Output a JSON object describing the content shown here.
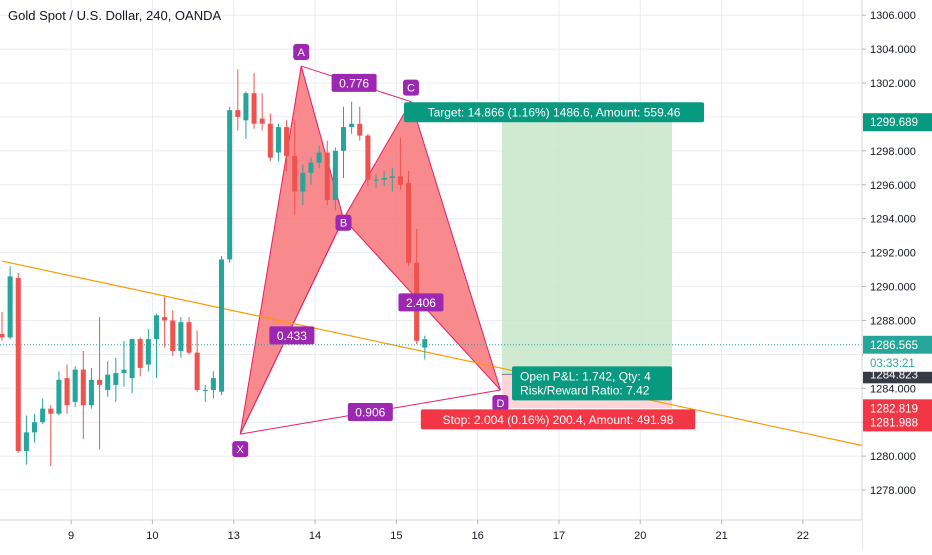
{
  "chart_data": {
    "type": "candlestick",
    "title": "Gold Spot / U.S. Dollar, 240, OANDA",
    "colors": {
      "up": "#26a69a",
      "down": "#ef5350",
      "pattern_fill": "#f77c80",
      "pattern_stroke": "#e91e63",
      "point_label": "#9c27b0",
      "trendline": "#ff9800",
      "target_zone": "#c8e6c9",
      "stop_zone": "#ffcdd2",
      "target_label": "#089981",
      "stop_label": "#f23645",
      "current_price_label": "#26a69a",
      "dark_label": "#363a45",
      "grid": "#e9ecf2"
    },
    "y_axis": {
      "min": 1277,
      "max": 1306.6,
      "ticks": [
        "1278.000",
        "1280.000",
        "1282.000",
        "1284.000",
        "1286.000",
        "1288.000",
        "1290.000",
        "1292.000",
        "1294.000",
        "1296.000",
        "1298.000",
        "1300.000",
        "1302.000",
        "1304.000",
        "1306.000"
      ]
    },
    "x_axis": {
      "min": 0,
      "max": 107,
      "ticks": [
        {
          "i": 8.5,
          "label": "9"
        },
        {
          "i": 18.5,
          "label": "10"
        },
        {
          "i": 28.5,
          "label": "13"
        },
        {
          "i": 38.5,
          "label": "14"
        },
        {
          "i": 48.5,
          "label": "15"
        },
        {
          "i": 58.5,
          "label": "16"
        },
        {
          "i": 68.5,
          "label": "17"
        },
        {
          "i": 78.5,
          "label": "20"
        },
        {
          "i": 88.5,
          "label": "21"
        },
        {
          "i": 98.5,
          "label": "22"
        }
      ]
    },
    "candles": [
      [
        1287.2,
        1288.5,
        1286.8,
        1287.0
      ],
      [
        1287.0,
        1291.2,
        1286.9,
        1290.6
      ],
      [
        1290.5,
        1290.8,
        1280.2,
        1280.3
      ],
      [
        1280.3,
        1282.4,
        1279.5,
        1281.4
      ],
      [
        1281.4,
        1282.5,
        1280.8,
        1282.0
      ],
      [
        1282.0,
        1283.4,
        1281.9,
        1282.8
      ],
      [
        1282.8,
        1283.0,
        1279.4,
        1282.5
      ],
      [
        1282.5,
        1285.0,
        1282.4,
        1284.5
      ],
      [
        1284.6,
        1285.4,
        1282.5,
        1283.0
      ],
      [
        1283.2,
        1285.3,
        1282.9,
        1285.1
      ],
      [
        1285.1,
        1286.2,
        1281.0,
        1283.0
      ],
      [
        1283.0,
        1285.2,
        1282.8,
        1284.5
      ],
      [
        1284.5,
        1288.2,
        1280.4,
        1284.2
      ],
      [
        1283.9,
        1285.6,
        1283.5,
        1284.8
      ],
      [
        1284.2,
        1285.8,
        1283.2,
        1284.9
      ],
      [
        1284.9,
        1286.8,
        1284.1,
        1285.1
      ],
      [
        1284.6,
        1286.9,
        1283.7,
        1286.9
      ],
      [
        1286.9,
        1287.0,
        1284.7,
        1285.2
      ],
      [
        1285.4,
        1287.5,
        1285.0,
        1286.9
      ],
      [
        1286.9,
        1288.4,
        1284.6,
        1288.3
      ],
      [
        1288.2,
        1289.4,
        1286.4,
        1288.0
      ],
      [
        1288.0,
        1288.6,
        1285.9,
        1286.2
      ],
      [
        1286.2,
        1288.2,
        1285.8,
        1287.9
      ],
      [
        1287.9,
        1288.2,
        1286.0,
        1286.1
      ],
      [
        1286.1,
        1287.4,
        1283.8,
        1283.9
      ],
      [
        1283.9,
        1284.2,
        1283.2,
        1283.9
      ],
      [
        1283.9,
        1285.0,
        1283.4,
        1284.6
      ],
      [
        1283.8,
        1291.8,
        1283.6,
        1291.6
      ],
      [
        1291.6,
        1300.6,
        1291.4,
        1300.4
      ],
      [
        1300.4,
        1302.8,
        1299.2,
        1300.0
      ],
      [
        1299.8,
        1301.5,
        1298.7,
        1301.4
      ],
      [
        1301.4,
        1302.6,
        1299.3,
        1299.6
      ],
      [
        1299.9,
        1301.4,
        1299.2,
        1299.6
      ],
      [
        1299.6,
        1300.2,
        1297.4,
        1297.6
      ],
      [
        1297.9,
        1299.6,
        1297.4,
        1299.4
      ],
      [
        1299.4,
        1299.8,
        1296.8,
        1297.7
      ],
      [
        1297.7,
        1299.8,
        1294.2,
        1295.6
      ],
      [
        1295.6,
        1297.2,
        1294.8,
        1296.7
      ],
      [
        1296.7,
        1297.6,
        1296.0,
        1297.3
      ],
      [
        1297.3,
        1298.3,
        1297.0,
        1297.9
      ],
      [
        1297.9,
        1298.6,
        1294.8,
        1295.1
      ],
      [
        1295.1,
        1298.2,
        1294.5,
        1298.0
      ],
      [
        1298.0,
        1300.6,
        1296.4,
        1299.4
      ],
      [
        1299.4,
        1300.9,
        1299.0,
        1299.6
      ],
      [
        1299.6,
        1300.6,
        1298.6,
        1298.9
      ],
      [
        1298.9,
        1299.0,
        1295.9,
        1296.3
      ],
      [
        1296.3,
        1296.6,
        1295.8,
        1296.3
      ],
      [
        1296.3,
        1296.8,
        1295.9,
        1296.4
      ],
      [
        1296.4,
        1297.0,
        1295.6,
        1296.5
      ],
      [
        1296.5,
        1298.8,
        1295.7,
        1296.0
      ],
      [
        1296.1,
        1296.8,
        1291.2,
        1291.4
      ],
      [
        1291.4,
        1293.4,
        1286.6,
        1286.8
      ],
      [
        1286.4,
        1287.1,
        1285.7,
        1286.9
      ]
    ],
    "annotations": {
      "pattern_points": {
        "X": {
          "i": 29.3,
          "p": 1281.3
        },
        "A": {
          "i": 36.8,
          "p": 1303.0
        },
        "B": {
          "i": 42.0,
          "p": 1294.0
        },
        "C": {
          "i": 50.3,
          "p": 1300.9
        },
        "D": {
          "i": 61.3,
          "p": 1283.9
        }
      },
      "ratios": {
        "xb": "0.433",
        "ac": "0.776",
        "bd": "2.406",
        "xd": "0.906"
      },
      "trendline": {
        "i1": 0,
        "p1": 1291.5,
        "i2": 107,
        "p2": 1280.5
      },
      "position": {
        "i_start": 61.5,
        "i_end": 82.4,
        "entry": 1284.823,
        "target": 1299.689,
        "stop": 1282.819
      },
      "target_label": "Target: 14.866 (1.16%) 1486.6, Amount: 559.46",
      "stop_label": "Stop: 2.004 (0.16%) 200.4, Amount: 491.98",
      "pnl_lines": [
        "Open P&L: 1.742, Qty: 4",
        "Risk/Reward Ratio: 7.42"
      ]
    },
    "price_labels": {
      "target": "1299.689",
      "current": "1286.565",
      "countdown": "03:33:21",
      "entry": "1284.823",
      "stop_1": "1282.819",
      "stop_2": "1281.988"
    },
    "current_price": 1286.565
  }
}
